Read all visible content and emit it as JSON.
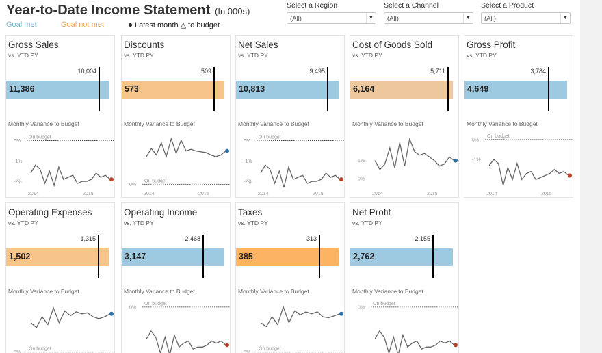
{
  "header": {
    "title": "Year-to-Date Income Statement",
    "subtitle": "(In 000s)"
  },
  "legend": {
    "goal_met": "Goal met",
    "goal_not_met": "Goal not met",
    "latest": "Latest month △ to budget"
  },
  "colors": {
    "goal_met": "#9ecae1",
    "goal_not_met": "#f7c48a",
    "cogs": "#ecc89c",
    "taxes": "#fdb462",
    "latest_positive": "#2c6ea4",
    "latest_negative": "#b5432a",
    "line": "#666666"
  },
  "filters": [
    {
      "label": "Select a Region",
      "value": "(All)"
    },
    {
      "label": "Select a Channel",
      "value": "(All)"
    },
    {
      "label": "Select a Product",
      "value": "(All)"
    }
  ],
  "common": {
    "vs_label": "vs. YTD PY",
    "variance_title": "Monthly Variance to Budget",
    "on_budget": "On budget",
    "year_2014": "2014",
    "year_2015": "2015"
  },
  "cards": [
    {
      "title": "Gross Sales",
      "value": "11,386",
      "target": "10,004",
      "status": "met",
      "ticks": [
        "0%",
        "-1%",
        "-2%"
      ],
      "on_budget_pos": "top",
      "show_years": true,
      "series": [
        -1.6,
        -1.2,
        -1.4,
        -2.1,
        -1.5,
        -2.2,
        -1.3,
        -1.9,
        -1.8,
        -1.7,
        -2.1,
        -2.0,
        -2.0,
        -1.9,
        -1.6,
        -1.8,
        -1.7,
        -1.9
      ],
      "y_min": -2.3,
      "y_max": 0.25,
      "latest": "negative"
    },
    {
      "title": "Discounts",
      "value": "573",
      "target": "509",
      "status": "notmet",
      "ticks": [
        "0%"
      ],
      "on_budget_pos": "bottom",
      "show_years": true,
      "series": [
        3.4,
        4.4,
        3.6,
        5.1,
        3.4,
        5.6,
        3.8,
        5.4,
        4.1,
        4.3,
        4.1,
        4.0,
        3.9,
        3.6,
        3.4,
        3.6,
        4.1
      ],
      "y_min": -0.4,
      "y_max": 6.0,
      "latest": "positive"
    },
    {
      "title": "Net Sales",
      "value": "10,813",
      "target": "9,495",
      "status": "met",
      "ticks": [
        "0%",
        "-1%",
        "-2%"
      ],
      "on_budget_pos": "top",
      "show_years": true,
      "series": [
        -1.6,
        -1.2,
        -1.4,
        -2.1,
        -1.5,
        -2.3,
        -1.3,
        -1.9,
        -1.8,
        -1.7,
        -2.1,
        -2.0,
        -2.0,
        -1.9,
        -1.6,
        -1.8,
        -1.7,
        -1.9
      ],
      "y_min": -2.3,
      "y_max": 0.25,
      "latest": "negative"
    },
    {
      "title": "Cost of Goods Sold",
      "value": "6,164",
      "target": "5,711",
      "status": "cogs",
      "ticks": [
        "1%",
        "0%"
      ],
      "on_budget_pos": "none",
      "show_years": true,
      "series": [
        1.0,
        0.5,
        0.8,
        1.7,
        0.6,
        2.0,
        0.7,
        2.2,
        1.5,
        1.3,
        1.4,
        1.2,
        1.0,
        0.7,
        0.8,
        1.2,
        1.0
      ],
      "y_min": -0.5,
      "y_max": 2.4,
      "latest": "positive"
    },
    {
      "title": "Gross Profit",
      "value": "4,649",
      "target": "3,784",
      "status": "met",
      "ticks": [
        "0%",
        "-1%"
      ],
      "on_budget_pos": "top",
      "show_years": true,
      "series": [
        -1.3,
        -1.0,
        -1.2,
        -2.3,
        -1.4,
        -2.0,
        -1.2,
        -2.0,
        -1.7,
        -1.6,
        -2.0,
        -1.9,
        -1.8,
        -1.7,
        -1.5,
        -1.7,
        -1.6,
        -1.8
      ],
      "y_min": -2.4,
      "y_max": 0.2,
      "latest": "negative"
    },
    {
      "title": "Operating Expenses",
      "value": "1,502",
      "target": "1,315",
      "status": "notmet",
      "ticks": [
        "0%"
      ],
      "on_budget_pos": "bottom",
      "show_years": false,
      "series": [
        3.0,
        2.5,
        3.6,
        2.8,
        4.5,
        3.0,
        4.2,
        3.7,
        4.1,
        3.9,
        4.0,
        3.6,
        3.4,
        3.6,
        3.9
      ],
      "y_min": -0.3,
      "y_max": 5.0,
      "latest": "positive"
    },
    {
      "title": "Operating Income",
      "value": "3,147",
      "target": "2,468",
      "status": "met",
      "ticks": [
        "0%"
      ],
      "on_budget_pos": "top",
      "show_years": false,
      "series": [
        -1.6,
        -1.2,
        -1.5,
        -2.3,
        -1.5,
        -2.4,
        -1.4,
        -2.0,
        -1.8,
        -1.7,
        -2.1,
        -2.0,
        -2.0,
        -1.9,
        -1.7,
        -1.8,
        -1.7,
        -1.9
      ],
      "y_min": -2.4,
      "y_max": 0.2,
      "latest": "negative"
    },
    {
      "title": "Taxes",
      "value": "385",
      "target": "313",
      "status": "taxes",
      "ticks": [
        "0%"
      ],
      "on_budget_pos": "bottom",
      "show_years": false,
      "series": [
        3.0,
        2.6,
        3.6,
        2.8,
        4.6,
        3.0,
        4.2,
        3.8,
        4.1,
        3.9,
        4.1,
        3.6,
        3.5,
        3.7,
        3.9
      ],
      "y_min": -0.3,
      "y_max": 5.0,
      "latest": "positive"
    },
    {
      "title": "Net Profit",
      "value": "2,762",
      "target": "2,155",
      "status": "met",
      "ticks": [
        "0%"
      ],
      "on_budget_pos": "top",
      "show_years": false,
      "series": [
        -1.6,
        -1.2,
        -1.5,
        -2.3,
        -1.5,
        -2.4,
        -1.4,
        -2.0,
        -1.8,
        -1.7,
        -2.1,
        -2.0,
        -2.0,
        -1.9,
        -1.7,
        -1.8,
        -1.7,
        -1.9
      ],
      "y_min": -2.4,
      "y_max": 0.2,
      "latest": "negative"
    }
  ]
}
